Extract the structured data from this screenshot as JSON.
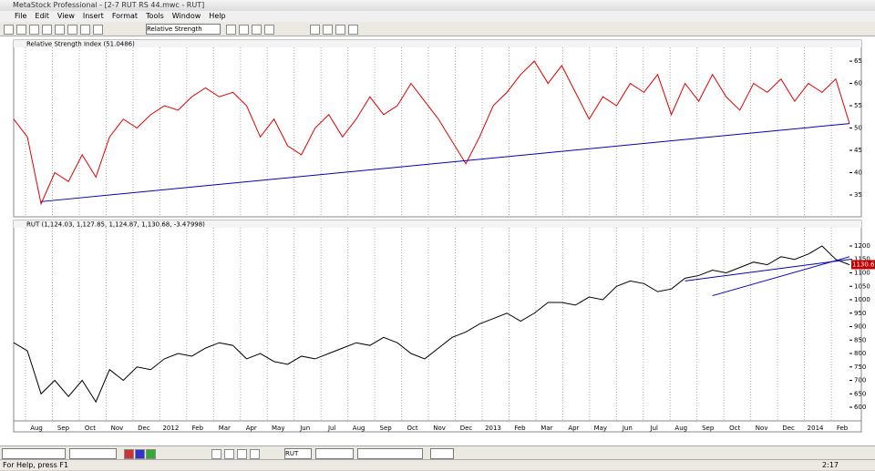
{
  "window": {
    "title": "MetaStock Professional - [2-7 RUT RS 44.mwc - RUT]",
    "menu": [
      "File",
      "Edit",
      "View",
      "Insert",
      "Format",
      "Tools",
      "Window",
      "Help"
    ],
    "toolbar_combo": "Relative Strength Index",
    "bottom_combo": "RUT",
    "status": "For Help, press F1",
    "clock": "2:17"
  },
  "chart_data": [
    {
      "type": "line",
      "title": "Relative Strength Index (51.0486)",
      "series": [
        {
          "name": "RSI",
          "color": "#e00000",
          "values": [
            52,
            48,
            33,
            40,
            38,
            44,
            39,
            48,
            52,
            50,
            53,
            55,
            54,
            57,
            59,
            57,
            58,
            55,
            48,
            52,
            46,
            44,
            50,
            53,
            48,
            52,
            57,
            53,
            55,
            60,
            56,
            52,
            47,
            42,
            48,
            55,
            58,
            62,
            65,
            60,
            64,
            58,
            52,
            57,
            55,
            60,
            58,
            62,
            53,
            60,
            56,
            62,
            57,
            54,
            60,
            58,
            61,
            56,
            60,
            58,
            61,
            51
          ]
        }
      ],
      "trendline": {
        "color": "#0000c0",
        "x": [
          2,
          61
        ],
        "values": [
          33.5,
          51
        ]
      },
      "ylim": [
        30.5,
        68.9
      ],
      "yticks": [
        35,
        40,
        45,
        50,
        55,
        60,
        65
      ]
    },
    {
      "type": "line",
      "title": "RUT (1,124.03, 1,127.85, 1,124.87, 1,130.68, -3.47998)",
      "series": [
        {
          "name": "RUT",
          "color": "#000000",
          "values": [
            840,
            810,
            650,
            700,
            640,
            700,
            620,
            740,
            700,
            750,
            740,
            780,
            800,
            790,
            820,
            840,
            830,
            780,
            800,
            770,
            760,
            790,
            780,
            800,
            820,
            840,
            830,
            860,
            840,
            800,
            780,
            820,
            860,
            880,
            910,
            930,
            950,
            920,
            950,
            990,
            990,
            980,
            1010,
            1000,
            1050,
            1070,
            1060,
            1030,
            1040,
            1080,
            1090,
            1110,
            1100,
            1120,
            1140,
            1130,
            1160,
            1150,
            1170,
            1200,
            1150,
            1130
          ]
        }
      ],
      "channel": [
        {
          "color": "#0000c0",
          "x": [
            49,
            61
          ],
          "values": [
            1070,
            1150
          ]
        },
        {
          "color": "#0000c0",
          "x": [
            51,
            61
          ],
          "values": [
            1015,
            1160
          ]
        }
      ],
      "last_label": {
        "value": 1130.68,
        "label": "1130.68"
      },
      "ylim": [
        556,
        1261
      ],
      "yticks": [
        600,
        650,
        700,
        750,
        800,
        850,
        900,
        950,
        1000,
        1050,
        1100,
        1150,
        1200
      ]
    }
  ],
  "months": [
    "Aug",
    "Sep",
    "Oct",
    "Nov",
    "Dec",
    "2012",
    "Feb",
    "Mar",
    "Apr",
    "May",
    "Jun",
    "Jul",
    "Aug",
    "Sep",
    "Oct",
    "Nov",
    "Dec",
    "2013",
    "Feb",
    "Mar",
    "Apr",
    "May",
    "Jun",
    "Jul",
    "Aug",
    "Sep",
    "Oct",
    "Nov",
    "Dec",
    "2014",
    "Feb"
  ]
}
